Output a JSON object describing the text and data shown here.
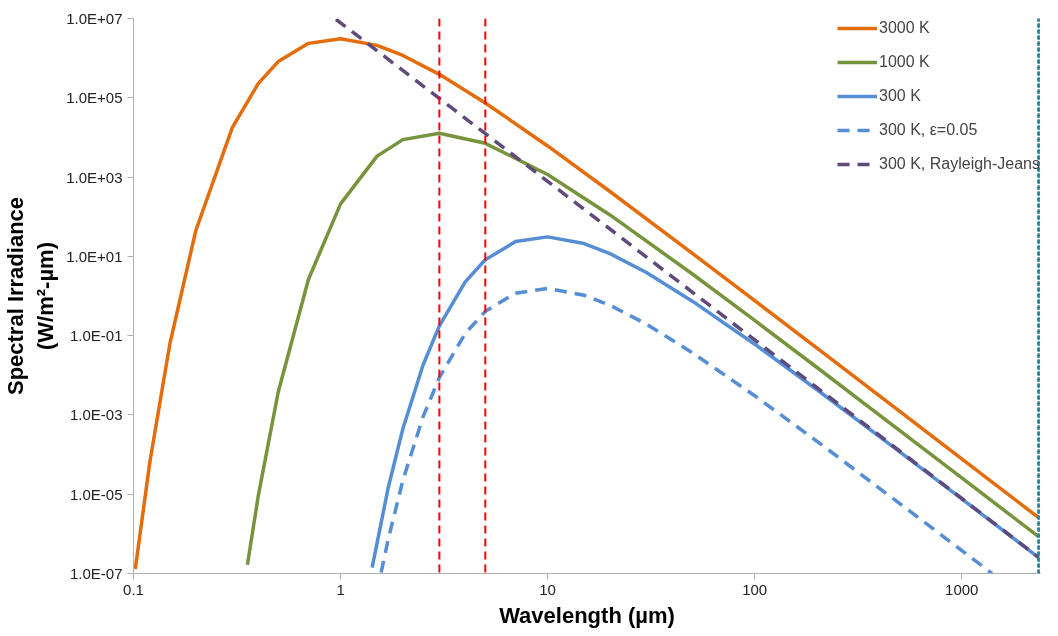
{
  "chart_data": {
    "type": "line",
    "xlabel": "Wavelength (µm)",
    "ylabel": "Spectral Irradiance\n(W/m²-µm)",
    "log": "xy",
    "grid": false,
    "legend": "top right",
    "xlim": [
      0.1,
      2400
    ],
    "xticks": [
      0.1,
      1,
      10,
      100,
      1000
    ],
    "ylim": [
      1e-07,
      10000000.0
    ],
    "yticks": [
      {
        "value": 10000000.0,
        "label": "1.0E+07"
      },
      {
        "value": 100000.0,
        "label": "1.0E+05"
      },
      {
        "value": 1000.0,
        "label": "1.0E+03"
      },
      {
        "value": 10,
        "label": "1.0E+01"
      },
      {
        "value": 0.1,
        "label": "1.0E-01"
      },
      {
        "value": 0.001,
        "label": "1.0E-03"
      },
      {
        "value": 1e-05,
        "label": "1.0E-05"
      },
      {
        "value": 1e-07,
        "label": "1.0E-07"
      }
    ],
    "series": [
      {
        "name": "3000 K",
        "color": "#e46c0a",
        "line_style": "solid",
        "x": [
          0.102,
          0.12,
          0.15,
          0.2,
          0.3,
          0.4,
          0.5,
          0.7,
          1,
          1.5,
          2,
          3,
          5,
          10,
          20,
          50,
          100,
          200,
          500,
          1000,
          2350
        ],
        "values": [
          1.3e-07,
          6.6e-05,
          0.064,
          45,
          17600.0,
          227000.0,
          820000.0,
          2360000.0,
          3100000.0,
          2100000.0,
          1170000.0,
          390000.0,
          74000.0,
          6100.0,
          432,
          11.9,
          0.76,
          0.0482,
          0.00124,
          7.8e-05,
          2.56e-06
        ]
      },
      {
        "name": "1000 K",
        "color": "#77933c",
        "line_style": "solid",
        "x": [
          0.355,
          0.4,
          0.5,
          0.7,
          1,
          1.5,
          2,
          3,
          5,
          10,
          20,
          50,
          100,
          200,
          500,
          1000,
          2350
        ],
        "values": [
          1.66e-07,
          8.8e-06,
          0.00379,
          2.64,
          211,
          3378,
          8800.0,
          12800.0,
          7100.0,
          1164,
          111,
          3.59,
          0.242,
          0.0157,
          0.00041,
          2.58e-05,
          8.5e-07
        ]
      },
      {
        "name": "300 K",
        "color": "#558ed5",
        "line_style": "solid",
        "x": [
          1.42,
          1.7,
          2,
          2.5,
          3,
          4,
          5,
          7,
          10,
          15,
          20,
          30,
          50,
          100,
          200,
          500,
          1000,
          2350
        ],
        "values": [
          1.4e-07,
          1.48e-05,
          0.00045,
          0.0179,
          0.176,
          2.27,
          8.2,
          23.6,
          31,
          21,
          11.7,
          3.9,
          0.74,
          0.0608,
          0.00432,
          0.000119,
          7.6e-06,
          2.53e-07
        ]
      },
      {
        "name": "300 K, ε=0.05",
        "color": "#558ed5",
        "line_style": "dashed",
        "x": [
          1.57,
          1.7,
          2,
          2.5,
          3,
          4,
          5,
          7,
          10,
          15,
          20,
          30,
          50,
          100,
          200,
          500,
          1000,
          1400
        ],
        "values": [
          1.06e-07,
          7.4e-07,
          2.25e-05,
          0.00089,
          0.0088,
          0.114,
          0.41,
          1.18,
          1.55,
          1.05,
          0.585,
          0.195,
          0.037,
          0.00304,
          0.000216,
          5.9e-06,
          3.8e-07,
          1e-07
        ]
      },
      {
        "name": "300 K, Rayleigh-Jeans",
        "color": "#604a7b",
        "line_style": "dashed",
        "x": [
          0.95,
          1,
          10,
          100,
          1000,
          2350
        ],
        "values": [
          9580000.0,
          7800000.0,
          780,
          0.078,
          7.8e-06,
          2.56e-07
        ]
      }
    ],
    "ref_lines": [
      {
        "axis": "x",
        "value": 3,
        "color": "#ff0000",
        "line_style": "dashed"
      },
      {
        "axis": "x",
        "value": 5,
        "color": "#ff0000",
        "line_style": "dashed"
      },
      {
        "axis": "x",
        "value": 2350,
        "color": "#31859c",
        "line_style": "dotted"
      }
    ]
  }
}
